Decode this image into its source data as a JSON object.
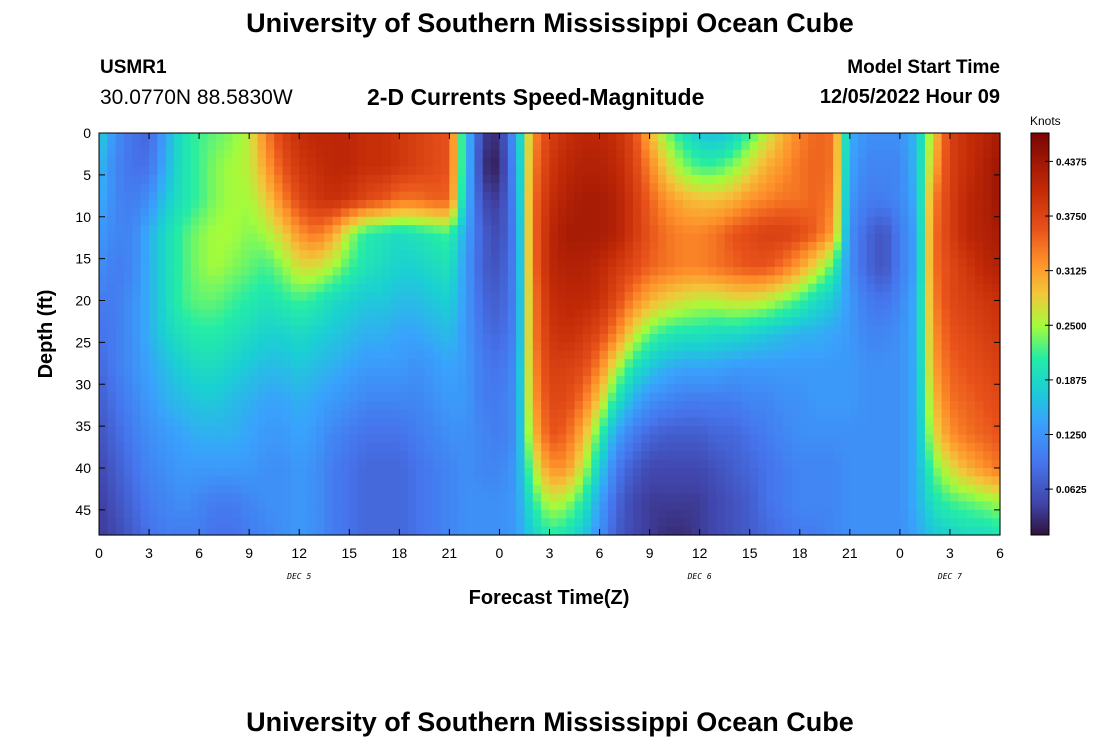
{
  "header": {
    "title": "University of Southern Mississippi Ocean Cube",
    "station_id": "USMR1",
    "station_coords": "30.0770N  88.5830W",
    "subtitle": "2-D Currents Speed-Magnitude",
    "model_label": "Model Start Time",
    "model_time": "12/05/2022 Hour 09"
  },
  "footer": {
    "title": "University of Southern Mississippi Ocean Cube"
  },
  "chart_data": {
    "type": "heatmap",
    "title": "2-D Currents Speed-Magnitude",
    "xlabel": "Forecast Time(Z)",
    "ylabel": "Depth (ft)",
    "x_hours_range": [
      0,
      54
    ],
    "x_tick_hours": [
      0,
      3,
      6,
      9,
      12,
      15,
      18,
      21,
      24,
      27,
      30,
      33,
      36,
      39,
      42,
      45,
      48,
      51,
      54
    ],
    "x_tick_labels": [
      "0",
      "3",
      "6",
      "9",
      "12",
      "15",
      "18",
      "21",
      "0",
      "3",
      "6",
      "9",
      "12",
      "15",
      "18",
      "21",
      "0",
      "3",
      "6"
    ],
    "day_labels": [
      {
        "hour": 12,
        "text": "DEC 5"
      },
      {
        "hour": 36,
        "text": "DEC 6"
      },
      {
        "hour": 51,
        "text": "DEC 7"
      }
    ],
    "ylim": [
      0,
      48
    ],
    "y_ticks": [
      0,
      5,
      10,
      15,
      20,
      25,
      30,
      35,
      40,
      45
    ],
    "colorbar": {
      "unit": "Knots",
      "range": [
        0.01,
        0.47
      ],
      "tick_values": [
        0.0625,
        0.125,
        0.1875,
        0.25,
        0.3125,
        0.375,
        0.4375
      ],
      "tick_labels": [
        "0.0625",
        "0.1250",
        "0.1875",
        "0.2500",
        "0.3125",
        "0.3750",
        "0.4375"
      ]
    },
    "depth_rows": [
      0,
      4,
      8,
      12,
      16,
      20,
      24,
      28,
      32,
      36,
      40,
      44,
      48
    ],
    "time_hours": [
      0,
      1,
      2,
      3,
      4,
      5,
      6,
      7,
      8,
      9,
      10,
      11,
      12,
      13,
      14,
      15,
      16,
      17,
      18,
      19,
      20,
      21,
      22,
      23,
      24,
      25,
      26,
      27,
      28,
      29,
      30,
      31,
      32,
      33,
      34,
      35,
      36,
      37,
      38,
      39,
      40,
      41,
      42,
      43,
      44,
      45,
      46,
      47,
      48,
      49,
      50,
      51,
      52,
      53,
      54
    ],
    "speed_knots": [
      [
        0.18,
        0.12,
        0.09,
        0.08,
        0.14,
        0.2,
        0.22,
        0.23,
        0.24,
        0.26,
        0.33,
        0.38,
        0.4,
        0.41,
        0.41,
        0.41,
        0.4,
        0.4,
        0.39,
        0.38,
        0.37,
        0.36,
        0.17,
        0.04,
        0.03,
        0.14,
        0.32,
        0.38,
        0.4,
        0.41,
        0.41,
        0.4,
        0.37,
        0.3,
        0.24,
        0.2,
        0.17,
        0.16,
        0.18,
        0.22,
        0.26,
        0.3,
        0.33,
        0.35,
        0.34,
        0.15,
        0.12,
        0.12,
        0.12,
        0.16,
        0.28,
        0.38,
        0.4,
        0.41,
        0.43
      ],
      [
        0.16,
        0.11,
        0.09,
        0.09,
        0.15,
        0.2,
        0.22,
        0.24,
        0.25,
        0.26,
        0.31,
        0.36,
        0.39,
        0.4,
        0.41,
        0.41,
        0.4,
        0.4,
        0.39,
        0.38,
        0.37,
        0.36,
        0.17,
        0.03,
        0.02,
        0.13,
        0.33,
        0.39,
        0.41,
        0.42,
        0.42,
        0.41,
        0.38,
        0.33,
        0.28,
        0.24,
        0.22,
        0.22,
        0.24,
        0.27,
        0.3,
        0.32,
        0.34,
        0.35,
        0.34,
        0.14,
        0.11,
        0.11,
        0.11,
        0.16,
        0.3,
        0.38,
        0.4,
        0.42,
        0.44
      ],
      [
        0.15,
        0.11,
        0.1,
        0.12,
        0.17,
        0.2,
        0.22,
        0.24,
        0.25,
        0.25,
        0.28,
        0.33,
        0.37,
        0.39,
        0.4,
        0.39,
        0.37,
        0.36,
        0.34,
        0.34,
        0.35,
        0.35,
        0.16,
        0.05,
        0.04,
        0.12,
        0.34,
        0.4,
        0.42,
        0.43,
        0.43,
        0.42,
        0.39,
        0.35,
        0.32,
        0.3,
        0.29,
        0.29,
        0.3,
        0.32,
        0.33,
        0.34,
        0.34,
        0.35,
        0.33,
        0.13,
        0.1,
        0.1,
        0.11,
        0.15,
        0.33,
        0.38,
        0.41,
        0.42,
        0.44
      ],
      [
        0.13,
        0.11,
        0.11,
        0.15,
        0.19,
        0.22,
        0.24,
        0.25,
        0.25,
        0.24,
        0.25,
        0.28,
        0.32,
        0.34,
        0.31,
        0.25,
        0.21,
        0.2,
        0.19,
        0.2,
        0.21,
        0.22,
        0.14,
        0.07,
        0.05,
        0.11,
        0.34,
        0.41,
        0.43,
        0.43,
        0.43,
        0.42,
        0.39,
        0.36,
        0.34,
        0.33,
        0.33,
        0.34,
        0.36,
        0.37,
        0.38,
        0.38,
        0.37,
        0.35,
        0.31,
        0.12,
        0.08,
        0.06,
        0.1,
        0.14,
        0.34,
        0.38,
        0.41,
        0.42,
        0.43
      ],
      [
        0.12,
        0.1,
        0.11,
        0.15,
        0.19,
        0.22,
        0.24,
        0.25,
        0.24,
        0.23,
        0.22,
        0.24,
        0.27,
        0.27,
        0.25,
        0.22,
        0.2,
        0.19,
        0.18,
        0.18,
        0.19,
        0.2,
        0.13,
        0.07,
        0.06,
        0.11,
        0.34,
        0.41,
        0.42,
        0.42,
        0.41,
        0.39,
        0.37,
        0.35,
        0.34,
        0.33,
        0.33,
        0.34,
        0.35,
        0.36,
        0.36,
        0.34,
        0.31,
        0.27,
        0.22,
        0.12,
        0.08,
        0.06,
        0.1,
        0.14,
        0.34,
        0.37,
        0.39,
        0.41,
        0.42
      ],
      [
        0.1,
        0.1,
        0.12,
        0.15,
        0.19,
        0.22,
        0.23,
        0.23,
        0.22,
        0.21,
        0.2,
        0.21,
        0.22,
        0.21,
        0.19,
        0.18,
        0.17,
        0.17,
        0.16,
        0.16,
        0.17,
        0.18,
        0.13,
        0.08,
        0.07,
        0.11,
        0.33,
        0.4,
        0.41,
        0.41,
        0.4,
        0.37,
        0.33,
        0.3,
        0.28,
        0.27,
        0.26,
        0.26,
        0.27,
        0.27,
        0.26,
        0.24,
        0.22,
        0.19,
        0.17,
        0.13,
        0.1,
        0.09,
        0.11,
        0.15,
        0.33,
        0.37,
        0.38,
        0.39,
        0.4
      ],
      [
        0.09,
        0.1,
        0.12,
        0.15,
        0.18,
        0.2,
        0.21,
        0.21,
        0.2,
        0.19,
        0.18,
        0.18,
        0.19,
        0.18,
        0.17,
        0.16,
        0.15,
        0.15,
        0.14,
        0.14,
        0.15,
        0.16,
        0.13,
        0.09,
        0.08,
        0.11,
        0.33,
        0.39,
        0.4,
        0.39,
        0.37,
        0.33,
        0.27,
        0.23,
        0.21,
        0.2,
        0.2,
        0.19,
        0.19,
        0.18,
        0.17,
        0.16,
        0.15,
        0.15,
        0.14,
        0.13,
        0.11,
        0.11,
        0.12,
        0.15,
        0.32,
        0.36,
        0.37,
        0.38,
        0.39
      ],
      [
        0.08,
        0.1,
        0.12,
        0.14,
        0.16,
        0.18,
        0.19,
        0.19,
        0.18,
        0.17,
        0.16,
        0.16,
        0.17,
        0.16,
        0.15,
        0.14,
        0.13,
        0.13,
        0.13,
        0.12,
        0.13,
        0.14,
        0.13,
        0.1,
        0.09,
        0.12,
        0.32,
        0.38,
        0.38,
        0.37,
        0.33,
        0.26,
        0.2,
        0.17,
        0.15,
        0.14,
        0.14,
        0.14,
        0.13,
        0.13,
        0.13,
        0.13,
        0.13,
        0.13,
        0.13,
        0.13,
        0.12,
        0.12,
        0.12,
        0.15,
        0.31,
        0.35,
        0.36,
        0.37,
        0.38
      ],
      [
        0.07,
        0.09,
        0.11,
        0.13,
        0.15,
        0.16,
        0.17,
        0.17,
        0.16,
        0.15,
        0.14,
        0.14,
        0.15,
        0.14,
        0.13,
        0.12,
        0.11,
        0.11,
        0.11,
        0.11,
        0.12,
        0.13,
        0.13,
        0.1,
        0.1,
        0.12,
        0.31,
        0.37,
        0.37,
        0.34,
        0.28,
        0.2,
        0.15,
        0.12,
        0.11,
        0.1,
        0.1,
        0.1,
        0.1,
        0.11,
        0.11,
        0.12,
        0.12,
        0.13,
        0.13,
        0.13,
        0.12,
        0.12,
        0.12,
        0.15,
        0.29,
        0.34,
        0.35,
        0.36,
        0.37
      ],
      [
        0.06,
        0.08,
        0.1,
        0.12,
        0.13,
        0.14,
        0.15,
        0.15,
        0.15,
        0.14,
        0.13,
        0.13,
        0.14,
        0.13,
        0.11,
        0.1,
        0.09,
        0.09,
        0.09,
        0.1,
        0.11,
        0.12,
        0.12,
        0.11,
        0.1,
        0.12,
        0.29,
        0.36,
        0.35,
        0.3,
        0.22,
        0.14,
        0.1,
        0.08,
        0.07,
        0.07,
        0.07,
        0.08,
        0.08,
        0.09,
        0.1,
        0.11,
        0.12,
        0.12,
        0.12,
        0.12,
        0.12,
        0.12,
        0.12,
        0.15,
        0.27,
        0.32,
        0.34,
        0.35,
        0.36
      ],
      [
        0.05,
        0.07,
        0.09,
        0.11,
        0.12,
        0.13,
        0.13,
        0.13,
        0.13,
        0.13,
        0.12,
        0.12,
        0.13,
        0.12,
        0.1,
        0.09,
        0.08,
        0.08,
        0.08,
        0.09,
        0.1,
        0.11,
        0.12,
        0.11,
        0.11,
        0.13,
        0.25,
        0.32,
        0.32,
        0.26,
        0.18,
        0.1,
        0.07,
        0.05,
        0.05,
        0.05,
        0.05,
        0.06,
        0.07,
        0.08,
        0.09,
        0.1,
        0.11,
        0.11,
        0.11,
        0.12,
        0.12,
        0.12,
        0.12,
        0.15,
        0.23,
        0.27,
        0.3,
        0.32,
        0.34
      ],
      [
        0.04,
        0.06,
        0.08,
        0.1,
        0.11,
        0.12,
        0.11,
        0.1,
        0.1,
        0.11,
        0.12,
        0.12,
        0.13,
        0.12,
        0.1,
        0.09,
        0.08,
        0.08,
        0.08,
        0.09,
        0.1,
        0.11,
        0.12,
        0.12,
        0.12,
        0.13,
        0.21,
        0.26,
        0.25,
        0.21,
        0.14,
        0.08,
        0.05,
        0.04,
        0.04,
        0.04,
        0.04,
        0.05,
        0.06,
        0.07,
        0.09,
        0.1,
        0.11,
        0.11,
        0.11,
        0.12,
        0.12,
        0.12,
        0.12,
        0.15,
        0.2,
        0.22,
        0.23,
        0.24,
        0.25
      ],
      [
        0.04,
        0.05,
        0.07,
        0.09,
        0.1,
        0.1,
        0.1,
        0.09,
        0.09,
        0.1,
        0.11,
        0.12,
        0.13,
        0.12,
        0.1,
        0.09,
        0.08,
        0.08,
        0.08,
        0.09,
        0.1,
        0.11,
        0.12,
        0.12,
        0.12,
        0.13,
        0.18,
        0.21,
        0.2,
        0.17,
        0.12,
        0.07,
        0.05,
        0.04,
        0.03,
        0.03,
        0.04,
        0.05,
        0.06,
        0.07,
        0.08,
        0.09,
        0.1,
        0.1,
        0.11,
        0.12,
        0.12,
        0.12,
        0.12,
        0.14,
        0.17,
        0.18,
        0.19,
        0.19,
        0.2
      ]
    ]
  }
}
